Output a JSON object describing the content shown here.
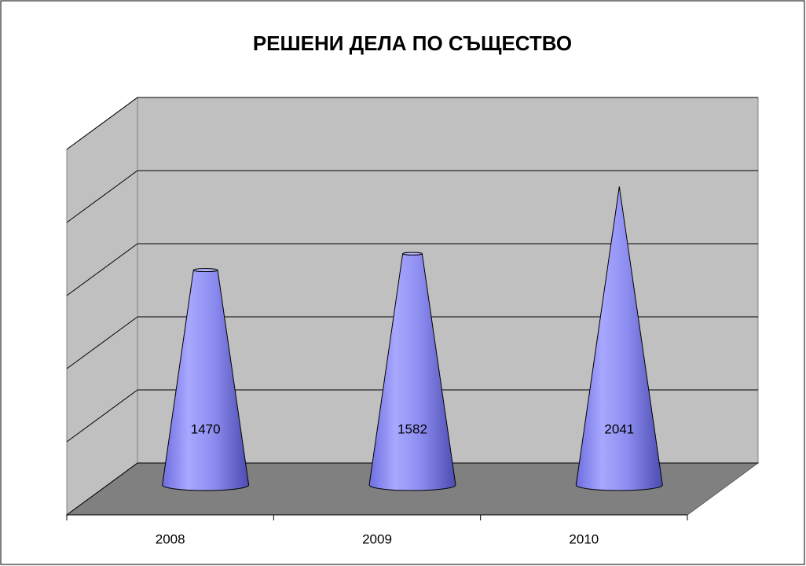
{
  "chart_data": {
    "type": "cone3d",
    "title": "РЕШЕНИ ДЕЛА ПО СЪЩЕСТВО",
    "categories": [
      "2008",
      "2009",
      "2010"
    ],
    "values": [
      1470,
      1582,
      2041
    ],
    "color": "#9999ff",
    "ylim": [
      0,
      2500
    ],
    "yticks": [
      0,
      500,
      1000,
      1500,
      2000,
      2500
    ],
    "grid": true
  }
}
